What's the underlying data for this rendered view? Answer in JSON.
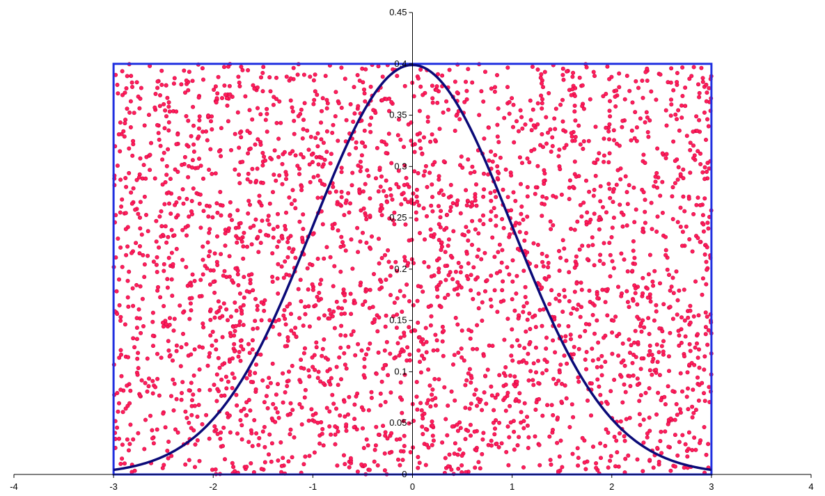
{
  "chart_data": {
    "type": "scatter",
    "title": "",
    "xlabel": "",
    "ylabel": "",
    "xlim": [
      -4,
      4
    ],
    "ylim": [
      0,
      0.45
    ],
    "grid": false,
    "legend": "none",
    "x_ticks": [
      "-4",
      "-3",
      "-2",
      "-1",
      "0",
      "1",
      "2",
      "3",
      "4"
    ],
    "y_ticks": [
      "0",
      "0.05",
      "0.1",
      "0.15",
      "0.2",
      "0.25",
      "0.3",
      "0.35",
      "0.4",
      "0.45"
    ],
    "bounding_box": {
      "x_range": [
        -3,
        3
      ],
      "y_range": [
        0,
        0.4
      ],
      "color": "#1f2fe0"
    },
    "curve": {
      "function": "standard normal density",
      "mean": 0,
      "sd": 1,
      "x_range": [
        -3,
        3
      ],
      "color": "#0a0a78"
    },
    "points": {
      "count": 3000,
      "distribution": "uniform random",
      "x_range": [
        -3,
        3
      ],
      "y_range": [
        0,
        0.4
      ],
      "color": "#ff1e5a",
      "edge_color": "#cc0040"
    }
  }
}
